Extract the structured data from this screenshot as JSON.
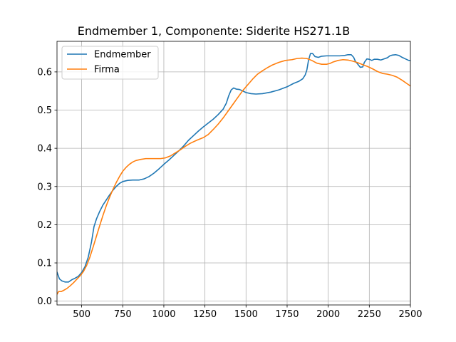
{
  "chart_data": {
    "type": "line",
    "title": "Endmember 1, Componente: Siderite HS271.1B",
    "xlabel": "",
    "ylabel": "",
    "xlim": [
      350,
      2500
    ],
    "ylim": [
      -0.01,
      0.68
    ],
    "xticks": [
      500,
      750,
      1000,
      1250,
      1500,
      1750,
      2000,
      2250,
      2500
    ],
    "xtick_labels": [
      "500",
      "750",
      "1000",
      "1250",
      "1500",
      "1750",
      "2000",
      "2250",
      "2500"
    ],
    "yticks": [
      0.0,
      0.1,
      0.2,
      0.3,
      0.4,
      0.5,
      0.6
    ],
    "ytick_labels": [
      "0.0",
      "0.1",
      "0.2",
      "0.3",
      "0.4",
      "0.5",
      "0.6"
    ],
    "grid": true,
    "legend": "top-left",
    "series": [
      {
        "name": "Endmember",
        "color": "#1f77b4",
        "points": [
          [
            350,
            0.076
          ],
          [
            365,
            0.058
          ],
          [
            380,
            0.053
          ],
          [
            400,
            0.05
          ],
          [
            420,
            0.05
          ],
          [
            440,
            0.056
          ],
          [
            460,
            0.06
          ],
          [
            480,
            0.065
          ],
          [
            500,
            0.075
          ],
          [
            520,
            0.09
          ],
          [
            540,
            0.115
          ],
          [
            560,
            0.155
          ],
          [
            575,
            0.195
          ],
          [
            590,
            0.215
          ],
          [
            610,
            0.235
          ],
          [
            630,
            0.252
          ],
          [
            650,
            0.265
          ],
          [
            670,
            0.278
          ],
          [
            690,
            0.29
          ],
          [
            710,
            0.3
          ],
          [
            730,
            0.308
          ],
          [
            750,
            0.313
          ],
          [
            780,
            0.316
          ],
          [
            810,
            0.317
          ],
          [
            850,
            0.317
          ],
          [
            880,
            0.32
          ],
          [
            910,
            0.326
          ],
          [
            940,
            0.335
          ],
          [
            970,
            0.346
          ],
          [
            1000,
            0.358
          ],
          [
            1030,
            0.369
          ],
          [
            1060,
            0.381
          ],
          [
            1090,
            0.393
          ],
          [
            1120,
            0.406
          ],
          [
            1150,
            0.421
          ],
          [
            1180,
            0.433
          ],
          [
            1210,
            0.445
          ],
          [
            1240,
            0.456
          ],
          [
            1270,
            0.466
          ],
          [
            1300,
            0.476
          ],
          [
            1330,
            0.488
          ],
          [
            1360,
            0.502
          ],
          [
            1380,
            0.518
          ],
          [
            1395,
            0.538
          ],
          [
            1410,
            0.553
          ],
          [
            1425,
            0.558
          ],
          [
            1440,
            0.555
          ],
          [
            1460,
            0.554
          ],
          [
            1480,
            0.55
          ],
          [
            1500,
            0.546
          ],
          [
            1530,
            0.543
          ],
          [
            1560,
            0.542
          ],
          [
            1600,
            0.543
          ],
          [
            1650,
            0.547
          ],
          [
            1700,
            0.553
          ],
          [
            1750,
            0.561
          ],
          [
            1790,
            0.57
          ],
          [
            1820,
            0.575
          ],
          [
            1845,
            0.582
          ],
          [
            1860,
            0.592
          ],
          [
            1870,
            0.605
          ],
          [
            1880,
            0.63
          ],
          [
            1892,
            0.648
          ],
          [
            1905,
            0.648
          ],
          [
            1920,
            0.64
          ],
          [
            1940,
            0.638
          ],
          [
            1960,
            0.641
          ],
          [
            1990,
            0.642
          ],
          [
            2030,
            0.642
          ],
          [
            2070,
            0.642
          ],
          [
            2100,
            0.643
          ],
          [
            2120,
            0.645
          ],
          [
            2140,
            0.645
          ],
          [
            2155,
            0.638
          ],
          [
            2165,
            0.628
          ],
          [
            2180,
            0.62
          ],
          [
            2195,
            0.612
          ],
          [
            2210,
            0.613
          ],
          [
            2220,
            0.625
          ],
          [
            2235,
            0.634
          ],
          [
            2250,
            0.633
          ],
          [
            2265,
            0.63
          ],
          [
            2280,
            0.633
          ],
          [
            2300,
            0.633
          ],
          [
            2320,
            0.631
          ],
          [
            2340,
            0.634
          ],
          [
            2360,
            0.637
          ],
          [
            2375,
            0.642
          ],
          [
            2390,
            0.644
          ],
          [
            2410,
            0.645
          ],
          [
            2430,
            0.643
          ],
          [
            2450,
            0.638
          ],
          [
            2470,
            0.634
          ],
          [
            2490,
            0.63
          ],
          [
            2500,
            0.63
          ]
        ]
      },
      {
        "name": "Firma",
        "color": "#ff7f0e",
        "points": [
          [
            350,
            0.018
          ],
          [
            360,
            0.025
          ],
          [
            375,
            0.025
          ],
          [
            390,
            0.028
          ],
          [
            410,
            0.033
          ],
          [
            430,
            0.04
          ],
          [
            450,
            0.048
          ],
          [
            470,
            0.057
          ],
          [
            490,
            0.066
          ],
          [
            510,
            0.077
          ],
          [
            530,
            0.093
          ],
          [
            550,
            0.115
          ],
          [
            570,
            0.142
          ],
          [
            590,
            0.17
          ],
          [
            610,
            0.198
          ],
          [
            630,
            0.225
          ],
          [
            650,
            0.25
          ],
          [
            670,
            0.272
          ],
          [
            690,
            0.292
          ],
          [
            710,
            0.31
          ],
          [
            730,
            0.326
          ],
          [
            750,
            0.34
          ],
          [
            770,
            0.35
          ],
          [
            790,
            0.358
          ],
          [
            810,
            0.364
          ],
          [
            830,
            0.368
          ],
          [
            860,
            0.371
          ],
          [
            890,
            0.373
          ],
          [
            920,
            0.373
          ],
          [
            950,
            0.373
          ],
          [
            980,
            0.373
          ],
          [
            1010,
            0.375
          ],
          [
            1040,
            0.38
          ],
          [
            1070,
            0.388
          ],
          [
            1100,
            0.396
          ],
          [
            1130,
            0.405
          ],
          [
            1160,
            0.413
          ],
          [
            1200,
            0.421
          ],
          [
            1240,
            0.428
          ],
          [
            1270,
            0.436
          ],
          [
            1300,
            0.449
          ],
          [
            1330,
            0.463
          ],
          [
            1360,
            0.479
          ],
          [
            1390,
            0.497
          ],
          [
            1420,
            0.515
          ],
          [
            1450,
            0.533
          ],
          [
            1480,
            0.551
          ],
          [
            1510,
            0.566
          ],
          [
            1540,
            0.581
          ],
          [
            1570,
            0.594
          ],
          [
            1600,
            0.603
          ],
          [
            1630,
            0.611
          ],
          [
            1660,
            0.618
          ],
          [
            1700,
            0.625
          ],
          [
            1740,
            0.63
          ],
          [
            1780,
            0.632
          ],
          [
            1810,
            0.635
          ],
          [
            1840,
            0.636
          ],
          [
            1870,
            0.635
          ],
          [
            1900,
            0.63
          ],
          [
            1930,
            0.623
          ],
          [
            1960,
            0.62
          ],
          [
            1990,
            0.62
          ],
          [
            2010,
            0.622
          ],
          [
            2030,
            0.626
          ],
          [
            2060,
            0.63
          ],
          [
            2090,
            0.632
          ],
          [
            2120,
            0.631
          ],
          [
            2150,
            0.628
          ],
          [
            2180,
            0.624
          ],
          [
            2210,
            0.619
          ],
          [
            2240,
            0.614
          ],
          [
            2270,
            0.608
          ],
          [
            2300,
            0.601
          ],
          [
            2330,
            0.596
          ],
          [
            2360,
            0.594
          ],
          [
            2390,
            0.591
          ],
          [
            2420,
            0.586
          ],
          [
            2450,
            0.578
          ],
          [
            2480,
            0.569
          ],
          [
            2500,
            0.563
          ]
        ]
      }
    ]
  }
}
